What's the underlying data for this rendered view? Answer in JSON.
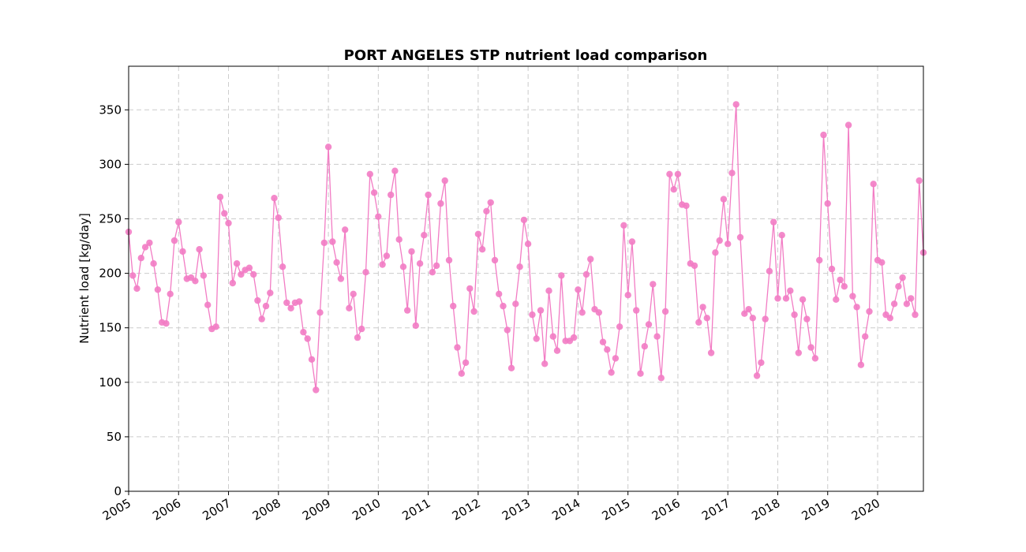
{
  "chart_data": {
    "type": "line",
    "title": "PORT ANGELES STP nutrient load comparison",
    "xlabel": "",
    "ylabel": "Nutrient load [kg/day]",
    "xlim": [
      "2005-01",
      "2020-12"
    ],
    "ylim": [
      0,
      390
    ],
    "yticks": [
      0,
      50,
      100,
      150,
      200,
      250,
      300,
      350
    ],
    "xticks": [
      "2005",
      "2006",
      "2007",
      "2008",
      "2009",
      "2010",
      "2011",
      "2012",
      "2013",
      "2014",
      "2015",
      "2016",
      "2017",
      "2018",
      "2019",
      "2020"
    ],
    "grid": true,
    "series": [
      {
        "color": "#f27cc4",
        "marker": "circle",
        "x": [
          "2005-01",
          "2005-02",
          "2005-03",
          "2005-04",
          "2005-05",
          "2005-06",
          "2005-07",
          "2005-08",
          "2005-09",
          "2005-10",
          "2005-11",
          "2005-12",
          "2006-01",
          "2006-02",
          "2006-03",
          "2006-04",
          "2006-05",
          "2006-06",
          "2006-07",
          "2006-08",
          "2006-09",
          "2006-10",
          "2006-11",
          "2006-12",
          "2007-01",
          "2007-02",
          "2007-03",
          "2007-04",
          "2007-05",
          "2007-06",
          "2007-07",
          "2007-08",
          "2007-09",
          "2007-10",
          "2007-11",
          "2007-12",
          "2008-01",
          "2008-02",
          "2008-03",
          "2008-04",
          "2008-05",
          "2008-06",
          "2008-07",
          "2008-08",
          "2008-09",
          "2008-10",
          "2008-11",
          "2008-12",
          "2009-01",
          "2009-02",
          "2009-03",
          "2009-04",
          "2009-05",
          "2009-06",
          "2009-07",
          "2009-08",
          "2009-09",
          "2009-10",
          "2009-11",
          "2009-12",
          "2010-01",
          "2010-02",
          "2010-03",
          "2010-04",
          "2010-05",
          "2010-06",
          "2010-07",
          "2010-08",
          "2010-09",
          "2010-10",
          "2010-11",
          "2010-12",
          "2011-01",
          "2011-02",
          "2011-03",
          "2011-04",
          "2011-05",
          "2011-06",
          "2011-07",
          "2011-08",
          "2011-09",
          "2011-10",
          "2011-11",
          "2011-12",
          "2012-01",
          "2012-02",
          "2012-03",
          "2012-04",
          "2012-05",
          "2012-06",
          "2012-07",
          "2012-08",
          "2012-09",
          "2012-10",
          "2012-11",
          "2012-12",
          "2013-01",
          "2013-02",
          "2013-03",
          "2013-04",
          "2013-05",
          "2013-06",
          "2013-07",
          "2013-08",
          "2013-09",
          "2013-10",
          "2013-11",
          "2013-12",
          "2014-01",
          "2014-02",
          "2014-03",
          "2014-04",
          "2014-05",
          "2014-06",
          "2014-07",
          "2014-08",
          "2014-09",
          "2014-10",
          "2014-11",
          "2014-12",
          "2015-01",
          "2015-02",
          "2015-03",
          "2015-04",
          "2015-05",
          "2015-06",
          "2015-07",
          "2015-08",
          "2015-09",
          "2015-10",
          "2015-11",
          "2015-12",
          "2016-01",
          "2016-02",
          "2016-03",
          "2016-04",
          "2016-05",
          "2016-06",
          "2016-07",
          "2016-08",
          "2016-09",
          "2016-10",
          "2016-11",
          "2016-12",
          "2017-01",
          "2017-02",
          "2017-03",
          "2017-04",
          "2017-05",
          "2017-06",
          "2017-07",
          "2017-08",
          "2017-09",
          "2017-10",
          "2017-11",
          "2017-12",
          "2018-01",
          "2018-02",
          "2018-03",
          "2018-04",
          "2018-05",
          "2018-06",
          "2018-07",
          "2018-08",
          "2018-09",
          "2018-10",
          "2018-11",
          "2018-12",
          "2019-01",
          "2019-02",
          "2019-03",
          "2019-04",
          "2019-05",
          "2019-06",
          "2019-07",
          "2019-08",
          "2019-09",
          "2019-10",
          "2019-11",
          "2019-12",
          "2020-01",
          "2020-02",
          "2020-03",
          "2020-04",
          "2020-05",
          "2020-06",
          "2020-07",
          "2020-08",
          "2020-09",
          "2020-10",
          "2020-11",
          "2020-12"
        ],
        "y": [
          238,
          198,
          186,
          214,
          224,
          228,
          209,
          185,
          155,
          154,
          181,
          230,
          247,
          220,
          195,
          196,
          193,
          222,
          198,
          171,
          149,
          151,
          270,
          255,
          246,
          191,
          209,
          199,
          203,
          205,
          199,
          175,
          158,
          170,
          182,
          269,
          251,
          206,
          173,
          168,
          173,
          174,
          146,
          140,
          121,
          93,
          164,
          228,
          316,
          229,
          210,
          195,
          240,
          168,
          181,
          141,
          149,
          201,
          291,
          274,
          252,
          208,
          216,
          272,
          294,
          231,
          206,
          166,
          220,
          152,
          209,
          235,
          272,
          201,
          207,
          264,
          285,
          212,
          170,
          132,
          108,
          118,
          186,
          165,
          236,
          222,
          257,
          265,
          212,
          181,
          170,
          148,
          113,
          172,
          206,
          249,
          227,
          162,
          140,
          166,
          117,
          184,
          142,
          129,
          198,
          138,
          138,
          141,
          185,
          164,
          199,
          213,
          167,
          164,
          137,
          130,
          109,
          122,
          151,
          244,
          180,
          229,
          166,
          108,
          133,
          153,
          190,
          142,
          104,
          165,
          291,
          277,
          291,
          263,
          262,
          209,
          207,
          155,
          169,
          159,
          127,
          219,
          230,
          268,
          227,
          292,
          355,
          233,
          163,
          167,
          159,
          106,
          118,
          158,
          202,
          247,
          177,
          235,
          177,
          184,
          162,
          127,
          176,
          158,
          132,
          122,
          212,
          327,
          264,
          204,
          176,
          194,
          188,
          336,
          179,
          169,
          116,
          142,
          165,
          282,
          212,
          210,
          162,
          159,
          172,
          188,
          196,
          172,
          177,
          162,
          285,
          219
        ]
      }
    ]
  }
}
